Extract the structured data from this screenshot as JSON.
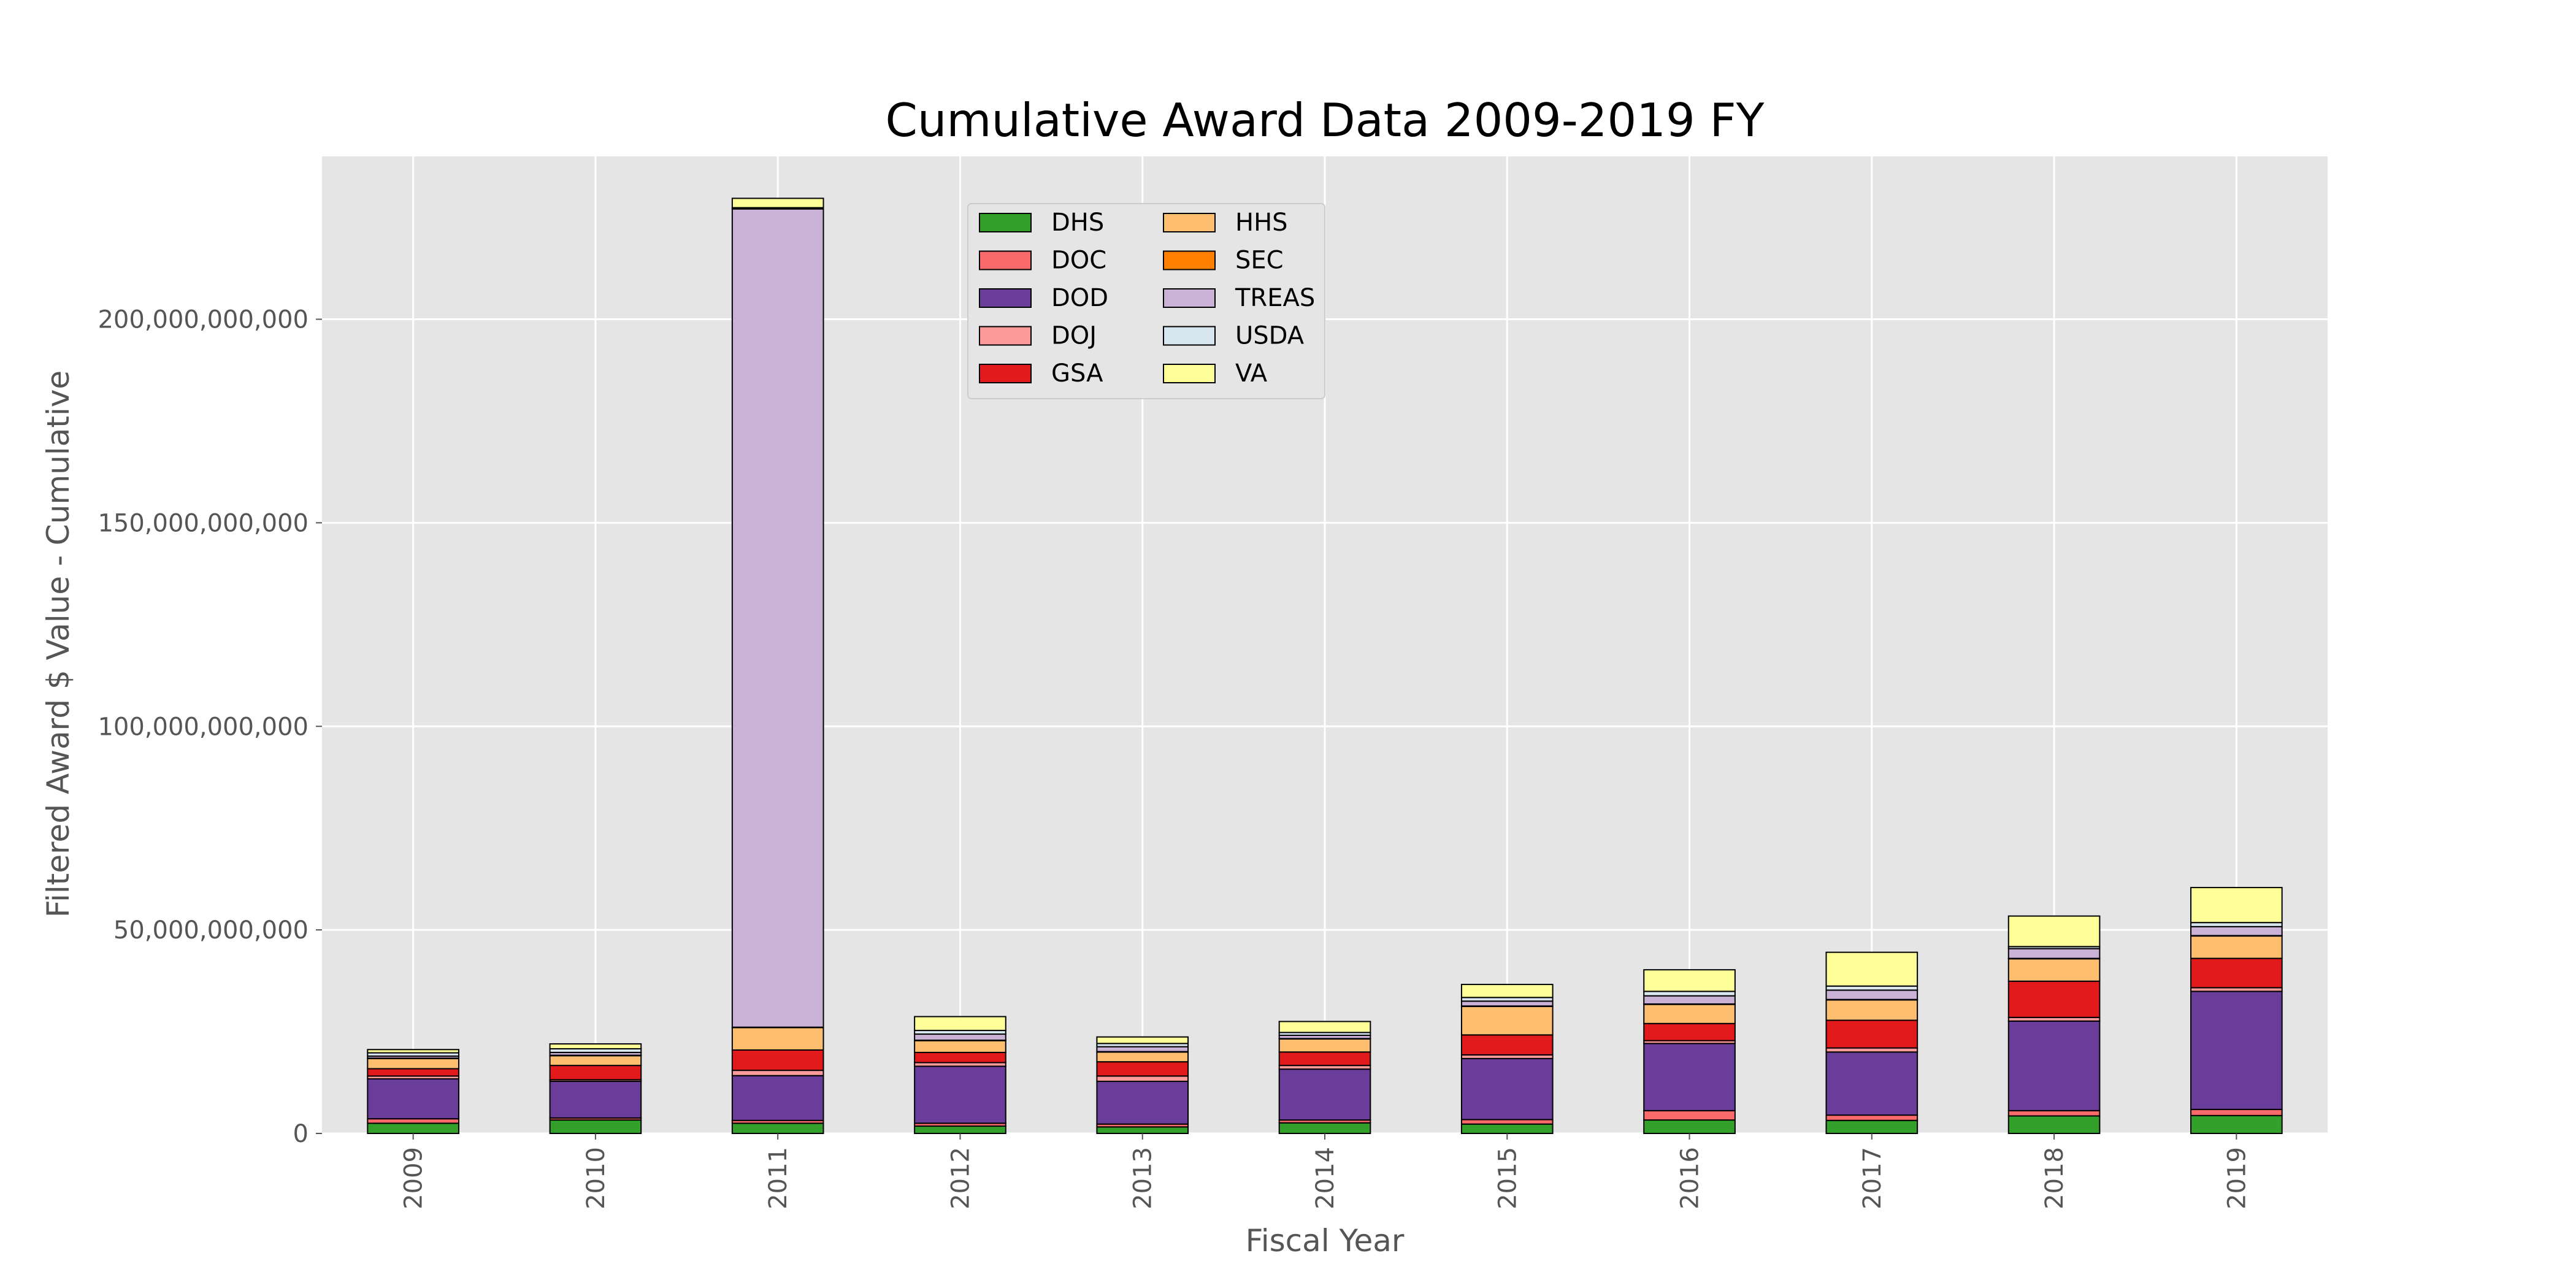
{
  "chart_data": {
    "type": "bar",
    "stacked": true,
    "title": "Cumulative Award Data 2009-2019 FY",
    "xlabel": "Fiscal Year",
    "ylabel": "Filtered Award $ Value - Cumulative",
    "ylim": [
      0,
      240000000000
    ],
    "yticks": [
      0,
      50000000000,
      100000000000,
      150000000000,
      200000000000
    ],
    "ytick_labels": [
      "0",
      "50,000,000,000",
      "100,000,000,000",
      "150,000,000,000",
      "200,000,000,000"
    ],
    "grid": true,
    "legend_position": "upper-center",
    "categories": [
      "2009",
      "2010",
      "2011",
      "2012",
      "2013",
      "2014",
      "2015",
      "2016",
      "2017",
      "2018",
      "2019"
    ],
    "series": [
      {
        "name": "DHS",
        "color": "#33a02c",
        "values": [
          2500000000,
          3300000000,
          2500000000,
          1800000000,
          1600000000,
          2600000000,
          2300000000,
          3300000000,
          3200000000,
          4300000000,
          4400000000
        ]
      },
      {
        "name": "DOC",
        "color": "#fb6a6a",
        "values": [
          1100000000,
          500000000,
          700000000,
          700000000,
          700000000,
          700000000,
          1100000000,
          2300000000,
          1300000000,
          1300000000,
          1500000000
        ]
      },
      {
        "name": "DOD",
        "color": "#6a3d9a",
        "values": [
          9800000000,
          9000000000,
          11000000000,
          14000000000,
          10500000000,
          12500000000,
          15000000000,
          16500000000,
          15500000000,
          22000000000,
          29000000000
        ]
      },
      {
        "name": "DOJ",
        "color": "#fb9a99",
        "values": [
          700000000,
          400000000,
          1300000000,
          900000000,
          1300000000,
          900000000,
          900000000,
          700000000,
          1000000000,
          900000000,
          900000000
        ]
      },
      {
        "name": "GSA",
        "color": "#e31a1c",
        "values": [
          1800000000,
          3500000000,
          5000000000,
          2500000000,
          3500000000,
          3300000000,
          4900000000,
          4200000000,
          6800000000,
          8900000000,
          7200000000
        ]
      },
      {
        "name": "HHS",
        "color": "#fdbf6f",
        "values": [
          2500000000,
          2400000000,
          5500000000,
          2900000000,
          2400000000,
          3200000000,
          7000000000,
          4700000000,
          5000000000,
          5500000000,
          5500000000
        ]
      },
      {
        "name": "SEC",
        "color": "#ff7f00",
        "values": [
          100000000,
          100000000,
          100000000,
          100000000,
          100000000,
          100000000,
          100000000,
          100000000,
          100000000,
          100000000,
          100000000
        ]
      },
      {
        "name": "TREAS",
        "color": "#cab2d6",
        "values": [
          500000000,
          700000000,
          201000000000,
          1500000000,
          1200000000,
          800000000,
          1200000000,
          2000000000,
          2300000000,
          2400000000,
          2200000000
        ]
      },
      {
        "name": "USDA",
        "color": "#d8e6f0",
        "values": [
          800000000,
          900000000,
          300000000,
          900000000,
          800000000,
          700000000,
          900000000,
          1100000000,
          1000000000,
          500000000,
          1000000000
        ]
      },
      {
        "name": "VA",
        "color": "#ffff99",
        "values": [
          800000000,
          1200000000,
          2300000000,
          3400000000,
          1600000000,
          2700000000,
          3200000000,
          5300000000,
          8300000000,
          7500000000,
          8600000000
        ]
      }
    ]
  }
}
